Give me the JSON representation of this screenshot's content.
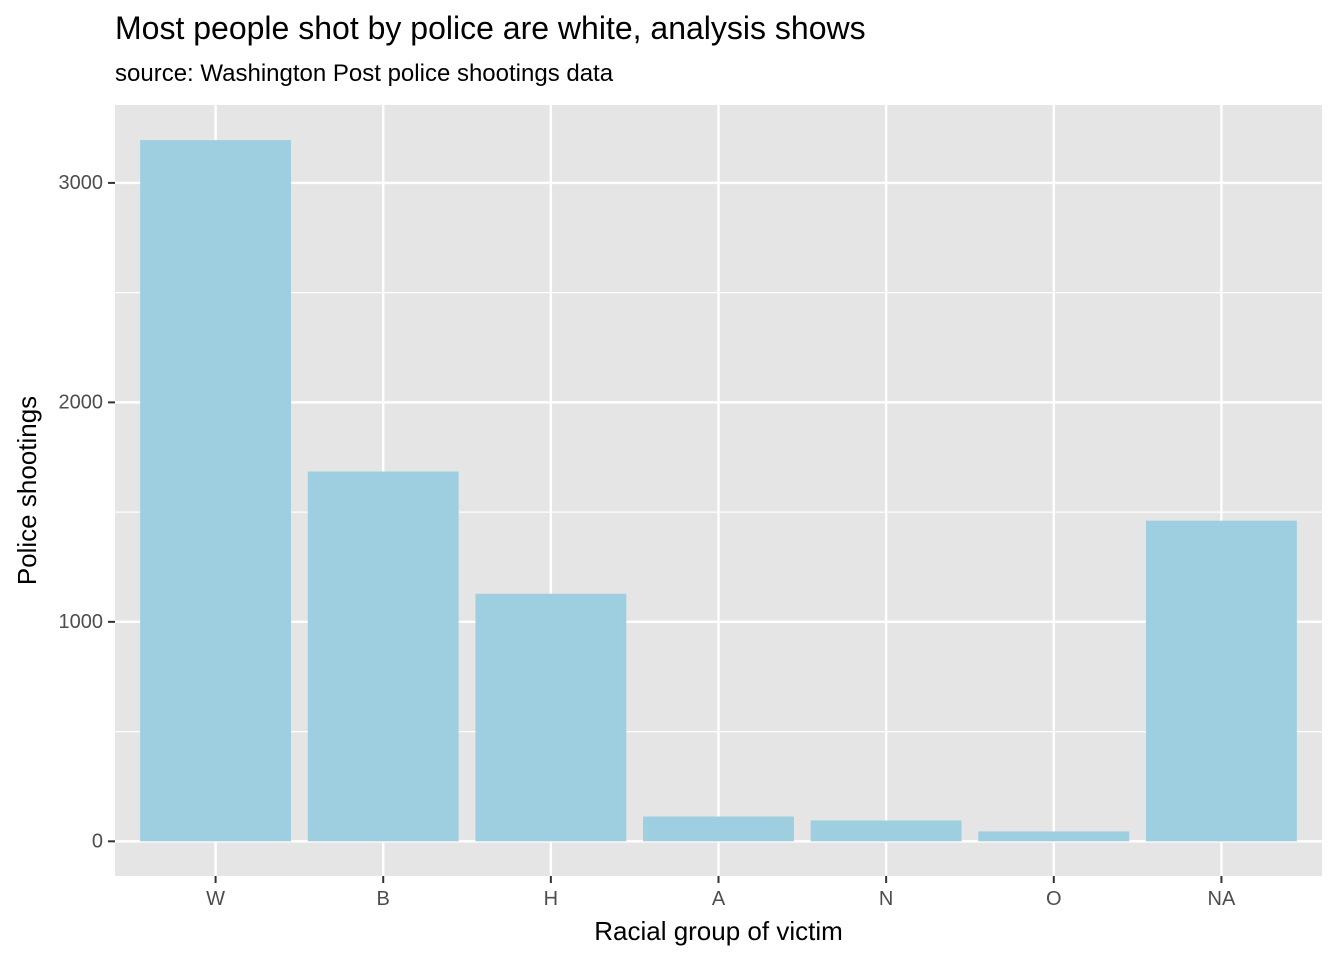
{
  "chart_data": {
    "type": "bar",
    "title": "Most people shot by police are white, analysis shows",
    "subtitle": "source: Washington Post police shootings data",
    "xlabel": "Racial group of victim",
    "ylabel": "Police shootings",
    "categories": [
      "W",
      "B",
      "H",
      "A",
      "N",
      "O",
      "NA"
    ],
    "values": [
      3195,
      1685,
      1128,
      113,
      95,
      45,
      1461
    ],
    "ylim": [
      -158,
      3355
    ],
    "yticks": [
      0,
      1000,
      2000,
      3000
    ],
    "yminor": [
      500,
      1500,
      2500
    ],
    "grid": true,
    "legend": "none",
    "colors": {
      "bar": "#9ecfe0",
      "panel": "#e5e5e5",
      "grid": "#ffffff"
    }
  }
}
